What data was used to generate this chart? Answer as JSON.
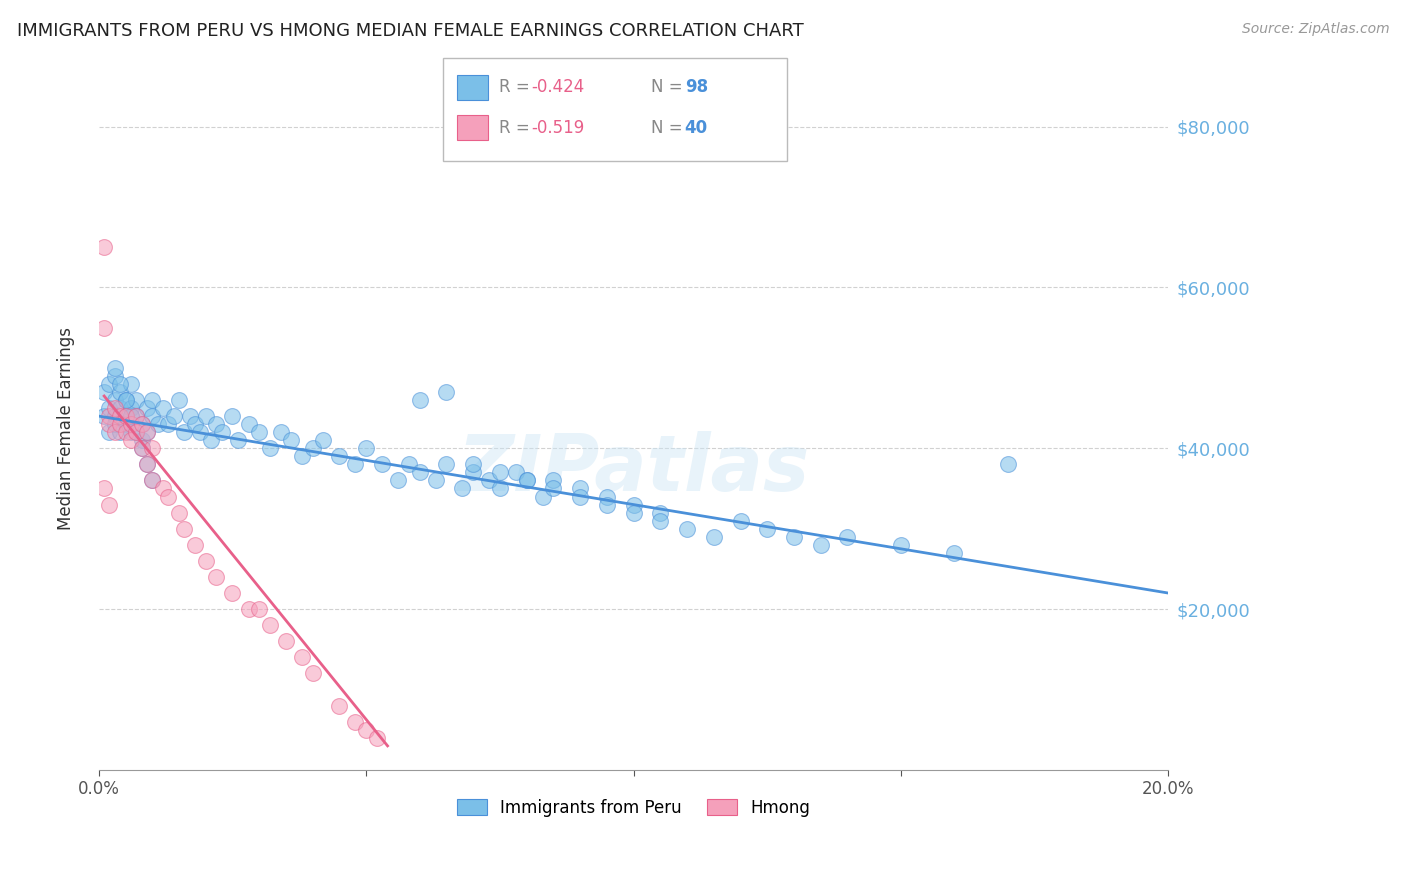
{
  "title": "IMMIGRANTS FROM PERU VS HMONG MEDIAN FEMALE EARNINGS CORRELATION CHART",
  "source": "Source: ZipAtlas.com",
  "ylabel": "Median Female Earnings",
  "x_min": 0.0,
  "x_max": 0.2,
  "y_min": 0,
  "y_max": 85000,
  "yticks": [
    20000,
    40000,
    60000,
    80000
  ],
  "xticks": [
    0.0,
    0.05,
    0.1,
    0.15,
    0.2
  ],
  "xticklabels": [
    "0.0%",
    "",
    "",
    "",
    "20.0%"
  ],
  "yticklabels": [
    "$20,000",
    "$40,000",
    "$60,000",
    "$80,000"
  ],
  "legend_r_peru": "-0.424",
  "legend_n_peru": "98",
  "legend_r_hmong": "-0.519",
  "legend_n_hmong": "40",
  "color_peru": "#7bbfe8",
  "color_hmong": "#f5a0bb",
  "color_line_peru": "#4a90d9",
  "color_line_hmong": "#e8608a",
  "color_ytick_labels": "#6ab0e0",
  "color_title": "#222222",
  "watermark": "ZIPatlas",
  "peru_line_x": [
    0.0,
    0.2
  ],
  "peru_line_y": [
    44000,
    22000
  ],
  "hmong_line_x": [
    0.001,
    0.054
  ],
  "hmong_line_y": [
    46500,
    3000
  ],
  "peru_x": [
    0.001,
    0.001,
    0.002,
    0.002,
    0.002,
    0.003,
    0.003,
    0.003,
    0.003,
    0.004,
    0.004,
    0.004,
    0.005,
    0.005,
    0.005,
    0.006,
    0.006,
    0.006,
    0.007,
    0.007,
    0.008,
    0.008,
    0.009,
    0.009,
    0.01,
    0.01,
    0.011,
    0.012,
    0.013,
    0.014,
    0.015,
    0.016,
    0.017,
    0.018,
    0.019,
    0.02,
    0.021,
    0.022,
    0.023,
    0.025,
    0.026,
    0.028,
    0.03,
    0.032,
    0.034,
    0.036,
    0.038,
    0.04,
    0.042,
    0.045,
    0.048,
    0.05,
    0.053,
    0.056,
    0.058,
    0.06,
    0.063,
    0.065,
    0.068,
    0.07,
    0.073,
    0.075,
    0.078,
    0.08,
    0.083,
    0.085,
    0.09,
    0.095,
    0.1,
    0.105,
    0.06,
    0.065,
    0.07,
    0.075,
    0.08,
    0.085,
    0.09,
    0.095,
    0.1,
    0.105,
    0.11,
    0.115,
    0.12,
    0.125,
    0.13,
    0.135,
    0.14,
    0.15,
    0.16,
    0.17,
    0.003,
    0.004,
    0.005,
    0.006,
    0.007,
    0.008,
    0.009,
    0.01
  ],
  "peru_y": [
    44000,
    47000,
    45000,
    48000,
    42000,
    44000,
    46000,
    43000,
    49000,
    45000,
    42000,
    47000,
    44000,
    46000,
    43000,
    45000,
    42000,
    48000,
    44000,
    46000,
    43000,
    41000,
    45000,
    42000,
    44000,
    46000,
    43000,
    45000,
    43000,
    44000,
    46000,
    42000,
    44000,
    43000,
    42000,
    44000,
    41000,
    43000,
    42000,
    44000,
    41000,
    43000,
    42000,
    40000,
    42000,
    41000,
    39000,
    40000,
    41000,
    39000,
    38000,
    40000,
    38000,
    36000,
    38000,
    37000,
    36000,
    38000,
    35000,
    37000,
    36000,
    35000,
    37000,
    36000,
    34000,
    36000,
    35000,
    34000,
    33000,
    32000,
    46000,
    47000,
    38000,
    37000,
    36000,
    35000,
    34000,
    33000,
    32000,
    31000,
    30000,
    29000,
    31000,
    30000,
    29000,
    28000,
    29000,
    28000,
    27000,
    38000,
    50000,
    48000,
    46000,
    44000,
    42000,
    40000,
    38000,
    36000
  ],
  "hmong_x": [
    0.001,
    0.001,
    0.002,
    0.002,
    0.003,
    0.003,
    0.004,
    0.004,
    0.005,
    0.005,
    0.006,
    0.006,
    0.007,
    0.007,
    0.008,
    0.008,
    0.009,
    0.009,
    0.01,
    0.01,
    0.012,
    0.013,
    0.015,
    0.016,
    0.018,
    0.02,
    0.022,
    0.025,
    0.028,
    0.03,
    0.032,
    0.035,
    0.038,
    0.04,
    0.045,
    0.048,
    0.05,
    0.052,
    0.001,
    0.002
  ],
  "hmong_y": [
    65000,
    55000,
    44000,
    43000,
    45000,
    42000,
    44000,
    43000,
    42000,
    44000,
    43000,
    41000,
    44000,
    42000,
    43000,
    40000,
    42000,
    38000,
    40000,
    36000,
    35000,
    34000,
    32000,
    30000,
    28000,
    26000,
    24000,
    22000,
    20000,
    20000,
    18000,
    16000,
    14000,
    12000,
    8000,
    6000,
    5000,
    4000,
    35000,
    33000
  ]
}
